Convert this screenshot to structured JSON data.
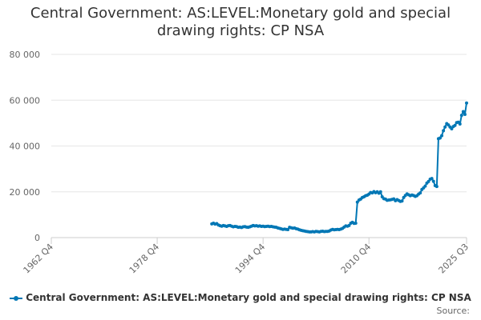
{
  "chart_data": {
    "type": "line",
    "title_lines": [
      "Central Government: AS:LEVEL:Monetary gold and special",
      "drawing rights: CP NSA"
    ],
    "xlabel": "",
    "ylabel": "",
    "x_tick_labels": [
      "1962 Q4",
      "1978 Q4",
      "1994 Q4",
      "2010 Q4",
      "2025 Q3"
    ],
    "xlim": [
      "1962 Q4",
      "2025 Q3"
    ],
    "y_ticks": [
      0,
      20000,
      40000,
      60000,
      80000
    ],
    "y_tick_labels": [
      "0",
      "20 000",
      "40 000",
      "60 000",
      "80 000"
    ],
    "ylim": [
      0,
      80000
    ],
    "grid": "horizontal",
    "legend_position": "bottom",
    "series": [
      {
        "name": "Central Government: AS:LEVEL:Monetary gold and special drawing rights: CP NSA",
        "color": "#0077b5",
        "points": [
          [
            "1987 Q1",
            6000
          ],
          [
            "1987 Q2",
            6300
          ],
          [
            "1987 Q3",
            5900
          ],
          [
            "1987 Q4",
            6100
          ],
          [
            "1988 Q1",
            5500
          ],
          [
            "1988 Q2",
            5200
          ],
          [
            "1988 Q3",
            5000
          ],
          [
            "1988 Q4",
            5300
          ],
          [
            "1989 Q1",
            5100
          ],
          [
            "1989 Q2",
            4900
          ],
          [
            "1989 Q3",
            5200
          ],
          [
            "1989 Q4",
            5300
          ],
          [
            "1990 Q1",
            5000
          ],
          [
            "1990 Q2",
            4700
          ],
          [
            "1990 Q3",
            4900
          ],
          [
            "1990 Q4",
            4800
          ],
          [
            "1991 Q1",
            4500
          ],
          [
            "1991 Q2",
            4600
          ],
          [
            "1991 Q3",
            4400
          ],
          [
            "1991 Q4",
            4700
          ],
          [
            "1992 Q1",
            4800
          ],
          [
            "1992 Q2",
            4600
          ],
          [
            "1992 Q3",
            4500
          ],
          [
            "1992 Q4",
            4700
          ],
          [
            "1993 Q1",
            5000
          ],
          [
            "1993 Q2",
            5300
          ],
          [
            "1993 Q3",
            5100
          ],
          [
            "1993 Q4",
            5200
          ],
          [
            "1994 Q1",
            5000
          ],
          [
            "1994 Q2",
            5100
          ],
          [
            "1994 Q3",
            4900
          ],
          [
            "1994 Q4",
            5000
          ],
          [
            "1995 Q1",
            4800
          ],
          [
            "1995 Q2",
            4900
          ],
          [
            "1995 Q3",
            5000
          ],
          [
            "1995 Q4",
            4800
          ],
          [
            "1996 Q1",
            4900
          ],
          [
            "1996 Q2",
            4700
          ],
          [
            "1996 Q3",
            4600
          ],
          [
            "1996 Q4",
            4500
          ],
          [
            "1997 Q1",
            4200
          ],
          [
            "1997 Q2",
            4000
          ],
          [
            "1997 Q3",
            3800
          ],
          [
            "1997 Q4",
            3600
          ],
          [
            "1998 Q1",
            3700
          ],
          [
            "1998 Q2",
            3600
          ],
          [
            "1998 Q3",
            3500
          ],
          [
            "1998 Q4",
            4500
          ],
          [
            "1999 Q1",
            4300
          ],
          [
            "1999 Q2",
            4100
          ],
          [
            "1999 Q3",
            4200
          ],
          [
            "1999 Q4",
            3900
          ],
          [
            "2000 Q1",
            3700
          ],
          [
            "2000 Q2",
            3400
          ],
          [
            "2000 Q3",
            3200
          ],
          [
            "2000 Q4",
            3000
          ],
          [
            "2001 Q1",
            2900
          ],
          [
            "2001 Q2",
            2700
          ],
          [
            "2001 Q3",
            2600
          ],
          [
            "2001 Q4",
            2500
          ],
          [
            "2002 Q1",
            2500
          ],
          [
            "2002 Q2",
            2600
          ],
          [
            "2002 Q3",
            2500
          ],
          [
            "2002 Q4",
            2700
          ],
          [
            "2003 Q1",
            2600
          ],
          [
            "2003 Q2",
            2500
          ],
          [
            "2003 Q3",
            2700
          ],
          [
            "2003 Q4",
            2800
          ],
          [
            "2004 Q1",
            2600
          ],
          [
            "2004 Q2",
            2700
          ],
          [
            "2004 Q3",
            2700
          ],
          [
            "2004 Q4",
            2900
          ],
          [
            "2005 Q1",
            3300
          ],
          [
            "2005 Q2",
            3600
          ],
          [
            "2005 Q3",
            3400
          ],
          [
            "2005 Q4",
            3500
          ],
          [
            "2006 Q1",
            3600
          ],
          [
            "2006 Q2",
            3500
          ],
          [
            "2006 Q3",
            3700
          ],
          [
            "2006 Q4",
            4000
          ],
          [
            "2007 Q1",
            4600
          ],
          [
            "2007 Q2",
            5100
          ],
          [
            "2007 Q3",
            5000
          ],
          [
            "2007 Q4",
            5300
          ],
          [
            "2008 Q1",
            6300
          ],
          [
            "2008 Q2",
            6700
          ],
          [
            "2008 Q3",
            6200
          ],
          [
            "2008 Q4",
            6300
          ],
          [
            "2009 Q1",
            15500
          ],
          [
            "2009 Q2",
            16400
          ],
          [
            "2009 Q3",
            16800
          ],
          [
            "2009 Q4",
            17500
          ],
          [
            "2010 Q1",
            17800
          ],
          [
            "2010 Q2",
            18300
          ],
          [
            "2010 Q3",
            18500
          ],
          [
            "2010 Q4",
            19000
          ],
          [
            "2011 Q1",
            19700
          ],
          [
            "2011 Q2",
            19500
          ],
          [
            "2011 Q3",
            20100
          ],
          [
            "2011 Q4",
            19600
          ],
          [
            "2012 Q1",
            20000
          ],
          [
            "2012 Q2",
            19400
          ],
          [
            "2012 Q3",
            20000
          ],
          [
            "2012 Q4",
            17800
          ],
          [
            "2013 Q1",
            17000
          ],
          [
            "2013 Q2",
            16800
          ],
          [
            "2013 Q3",
            16300
          ],
          [
            "2013 Q4",
            16400
          ],
          [
            "2014 Q1",
            16500
          ],
          [
            "2014 Q2",
            16700
          ],
          [
            "2014 Q3",
            16900
          ],
          [
            "2014 Q4",
            16100
          ],
          [
            "2015 Q1",
            16600
          ],
          [
            "2015 Q2",
            16200
          ],
          [
            "2015 Q3",
            15800
          ],
          [
            "2015 Q4",
            16000
          ],
          [
            "2016 Q1",
            17500
          ],
          [
            "2016 Q2",
            18400
          ],
          [
            "2016 Q3",
            19100
          ],
          [
            "2016 Q4",
            18700
          ],
          [
            "2017 Q1",
            18300
          ],
          [
            "2017 Q2",
            18600
          ],
          [
            "2017 Q3",
            18400
          ],
          [
            "2017 Q4",
            18000
          ],
          [
            "2018 Q1",
            18300
          ],
          [
            "2018 Q2",
            19000
          ],
          [
            "2018 Q3",
            19500
          ],
          [
            "2018 Q4",
            21000
          ],
          [
            "2019 Q1",
            21700
          ],
          [
            "2019 Q2",
            22500
          ],
          [
            "2019 Q3",
            23800
          ],
          [
            "2019 Q4",
            24500
          ],
          [
            "2020 Q1",
            25500
          ],
          [
            "2020 Q2",
            25800
          ],
          [
            "2020 Q3",
            24600
          ],
          [
            "2020 Q4",
            22700
          ],
          [
            "2021 Q1",
            22300
          ],
          [
            "2021 Q2",
            43200
          ],
          [
            "2021 Q3",
            43500
          ],
          [
            "2021 Q4",
            44500
          ],
          [
            "2022 Q1",
            46700
          ],
          [
            "2022 Q2",
            48300
          ],
          [
            "2022 Q3",
            49800
          ],
          [
            "2022 Q4",
            49200
          ],
          [
            "2023 Q1",
            48300
          ],
          [
            "2023 Q2",
            47500
          ],
          [
            "2023 Q3",
            48500
          ],
          [
            "2023 Q4",
            49000
          ],
          [
            "2024 Q1",
            50200
          ],
          [
            "2024 Q2",
            50400
          ],
          [
            "2024 Q3",
            49600
          ],
          [
            "2024 Q4",
            53400
          ],
          [
            "2025 Q1",
            55000
          ],
          [
            "2025 Q2",
            53800
          ],
          [
            "2025 Q3",
            58800
          ]
        ]
      }
    ]
  },
  "source_label": "Source:"
}
